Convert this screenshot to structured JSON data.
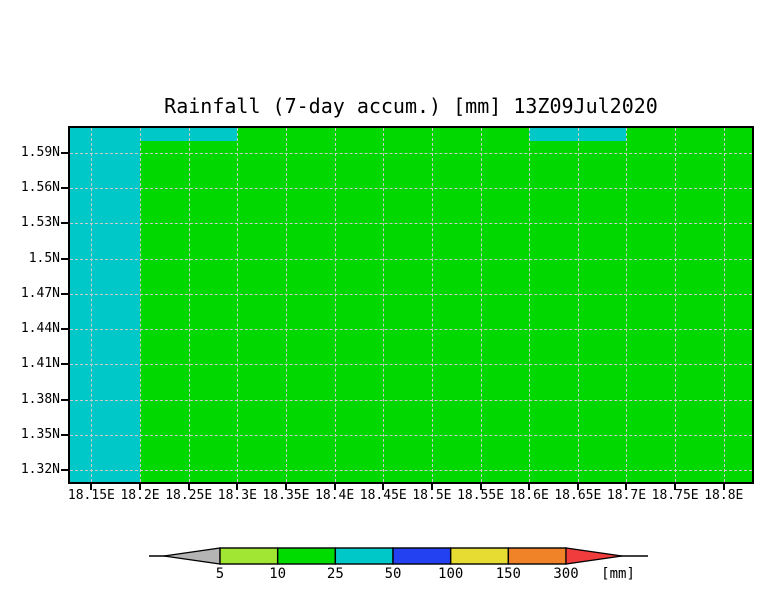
{
  "title": "Rainfall (7-day accum.) [mm] 13Z09Jul2020",
  "chart_data": {
    "type": "heatmap",
    "title": "Rainfall (7-day accum.) [mm] 13Z09Jul2020",
    "variable": "Rainfall (7-day accum.)",
    "units": "mm",
    "valid_time": "13Z09Jul2020",
    "grid": {
      "show": true,
      "color": "#c9c9c9",
      "style": "dashed"
    },
    "x_axis": {
      "range": [
        18.128,
        18.829
      ],
      "tick_values": [
        18.15,
        18.2,
        18.25,
        18.3,
        18.35,
        18.4,
        18.45,
        18.5,
        18.55,
        18.6,
        18.65,
        18.7,
        18.75,
        18.8
      ],
      "tick_labels": [
        "18.15E",
        "18.2E",
        "18.25E",
        "18.3E",
        "18.35E",
        "18.4E",
        "18.45E",
        "18.5E",
        "18.55E",
        "18.6E",
        "18.65E",
        "18.7E",
        "18.75E",
        "18.8E"
      ]
    },
    "y_axis": {
      "range": [
        1.31,
        1.611
      ],
      "tick_values": [
        1.59,
        1.56,
        1.53,
        1.5,
        1.47,
        1.44,
        1.41,
        1.38,
        1.35,
        1.32
      ],
      "tick_labels": [
        "1.59N",
        "1.56N",
        "1.53N",
        "1.5N",
        "1.47N",
        "1.44N",
        "1.41N",
        "1.38N",
        "1.35N",
        "1.32N"
      ]
    },
    "regions": [
      {
        "label": "10-25 mm (field background)",
        "color": "#00d800",
        "lon": [
          18.128,
          18.829
        ],
        "lat": [
          1.31,
          1.611
        ]
      },
      {
        "label": "25-50 mm (western column)",
        "color": "#00c8c8",
        "lon": [
          18.128,
          18.2
        ],
        "lat": [
          1.31,
          1.611
        ]
      },
      {
        "label": "25-50 mm (north-west band)",
        "color": "#00c8c8",
        "lon": [
          18.128,
          18.3
        ],
        "lat": [
          1.6,
          1.611
        ]
      },
      {
        "label": "25-50 mm (north-east band)",
        "color": "#00c8c8",
        "lon": [
          18.6,
          18.7
        ],
        "lat": [
          1.6,
          1.611
        ]
      }
    ],
    "colorbar": {
      "boundary_labels": [
        "5",
        "10",
        "25",
        "50",
        "100",
        "150",
        "300"
      ],
      "segment_colors": [
        "#a0e632",
        "#00dc00",
        "#00c8c8",
        "#2341f0",
        "#e6dc32",
        "#f08228"
      ],
      "below_min_color": "#b4b4b4",
      "above_max_color": "#f03c3c",
      "unit_label": "[mm]"
    }
  }
}
